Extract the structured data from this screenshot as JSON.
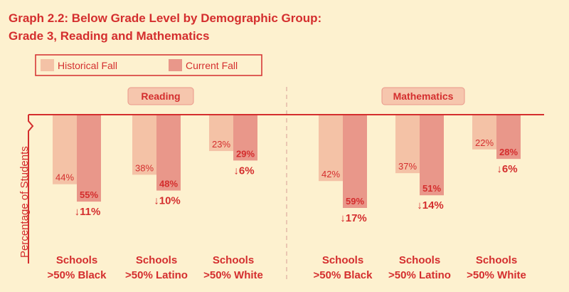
{
  "chart_data": {
    "type": "bar",
    "title": "Graph 2.2: Below Grade Level by Demographic Group:",
    "subtitle": "Grade 3, Reading and Mathematics",
    "ylabel": "Percentage of Students",
    "legend": {
      "placement": "top-left",
      "entries": [
        {
          "name": "Historical Fall",
          "color": "#f4c2a6"
        },
        {
          "name": "Current Fall",
          "color": "#e9978a"
        }
      ]
    },
    "ylim": [
      0,
      100
    ],
    "inverted": true,
    "panels": [
      {
        "label": "Reading",
        "categories": [
          ">50% Black",
          ">50% Latino",
          ">50% White"
        ],
        "series": [
          {
            "name": "Historical Fall",
            "values": [
              44,
              38,
              23
            ],
            "labels": [
              "44%",
              "38%",
              "23%"
            ]
          },
          {
            "name": "Current Fall",
            "values": [
              55,
              48,
              29
            ],
            "labels": [
              "55%",
              "48%",
              "29%"
            ]
          }
        ],
        "changes": [
          "↓11%",
          "↓10%",
          "↓6%"
        ]
      },
      {
        "label": "Mathematics",
        "categories": [
          ">50% Black",
          ">50% Latino",
          ">50% White"
        ],
        "series": [
          {
            "name": "Historical Fall",
            "values": [
              42,
              37,
              22
            ],
            "labels": [
              "42%",
              "37%",
              "22%"
            ]
          },
          {
            "name": "Current Fall",
            "values": [
              59,
              51,
              28
            ],
            "labels": [
              "59%",
              "51%",
              "28%"
            ]
          }
        ],
        "changes": [
          "↓17%",
          "↓14%",
          "↓6%"
        ]
      }
    ],
    "category_prefix": "Schools"
  }
}
